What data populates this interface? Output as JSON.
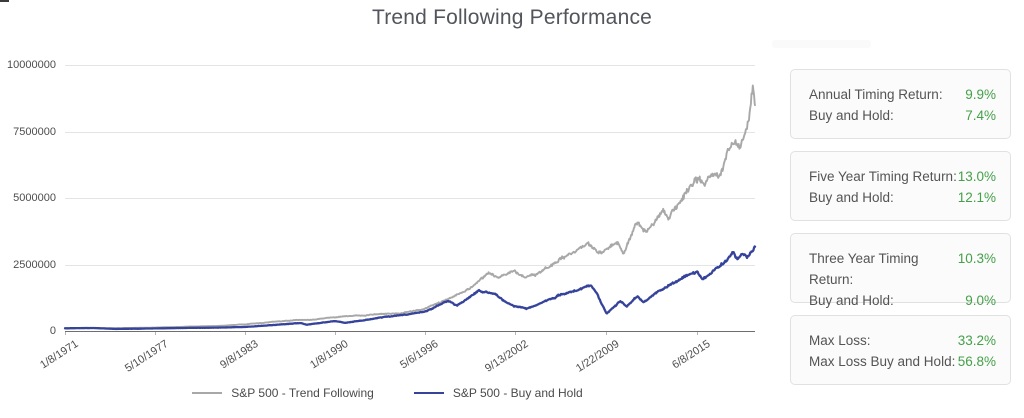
{
  "title": "Trend Following Performance",
  "chart_data": {
    "type": "line",
    "title": "Trend Following Performance",
    "xlabel": "",
    "ylabel": "",
    "grid": "horizontal",
    "legend_position": "bottom",
    "ylim": [
      0,
      10000000
    ],
    "y_ticks": [
      0,
      2500000,
      5000000,
      7500000,
      10000000
    ],
    "y_tick_labels": [
      "0",
      "2500000",
      "5000000",
      "7500000",
      "10000000"
    ],
    "x_tick_labels": [
      "1/8/1971",
      "5/10/1977",
      "9/8/1983",
      "1/8/1990",
      "5/6/1996",
      "9/13/2002",
      "1/22/2009",
      "6/8/2015"
    ],
    "x_tick_years": [
      1971.02,
      1977.36,
      1983.69,
      1990.02,
      1996.35,
      2002.7,
      2009.06,
      2015.44
    ],
    "xlim_years": [
      1971.02,
      2019.55
    ],
    "series": [
      {
        "name": "S&P 500 - Trend Following",
        "color": "#a8a8a8",
        "anchors_year_value": [
          [
            1971.02,
            100000
          ],
          [
            1973.0,
            110000
          ],
          [
            1974.5,
            105000
          ],
          [
            1977.4,
            130000
          ],
          [
            1980.0,
            170000
          ],
          [
            1982.0,
            200000
          ],
          [
            1983.7,
            250000
          ],
          [
            1986.0,
            360000
          ],
          [
            1987.7,
            430000
          ],
          [
            1988.3,
            420000
          ],
          [
            1990.0,
            520000
          ],
          [
            1991.0,
            560000
          ],
          [
            1993.1,
            640000
          ],
          [
            1994.5,
            660000
          ],
          [
            1996.3,
            830000
          ],
          [
            1998.0,
            1200000
          ],
          [
            1999.4,
            1580000
          ],
          [
            2000.8,
            2190000
          ],
          [
            2001.5,
            2070000
          ],
          [
            2002.6,
            2260000
          ],
          [
            2003.3,
            2000000
          ],
          [
            2004.3,
            2190000
          ],
          [
            2005.7,
            2640000
          ],
          [
            2007.1,
            3130000
          ],
          [
            2007.8,
            3280000
          ],
          [
            2008.5,
            2940000
          ],
          [
            2009.2,
            3090000
          ],
          [
            2009.9,
            3400000
          ],
          [
            2010.3,
            2940000
          ],
          [
            2011.3,
            4070000
          ],
          [
            2011.9,
            3700000
          ],
          [
            2012.4,
            3960000
          ],
          [
            2013.1,
            4530000
          ],
          [
            2013.5,
            4230000
          ],
          [
            2014.2,
            4900000
          ],
          [
            2014.9,
            5470000
          ],
          [
            2015.4,
            5850000
          ],
          [
            2016.0,
            5660000
          ],
          [
            2016.6,
            6110000
          ],
          [
            2017.1,
            5960000
          ],
          [
            2017.7,
            6790000
          ],
          [
            2018.2,
            7170000
          ],
          [
            2018.5,
            6870000
          ],
          [
            2019.0,
            7620000
          ],
          [
            2019.2,
            8110000
          ],
          [
            2019.4,
            9130000
          ],
          [
            2019.55,
            8490000
          ]
        ]
      },
      {
        "name": "S&P 500 - Buy and Hold",
        "color": "#35439b",
        "anchors_year_value": [
          [
            1971.02,
            100000
          ],
          [
            1973.0,
            115000
          ],
          [
            1974.6,
            78000
          ],
          [
            1977.4,
            95000
          ],
          [
            1980.0,
            120000
          ],
          [
            1982.0,
            130000
          ],
          [
            1983.7,
            150000
          ],
          [
            1987.6,
            300000
          ],
          [
            1988.0,
            235000
          ],
          [
            1990.0,
            380000
          ],
          [
            1990.7,
            305000
          ],
          [
            1993.1,
            490000
          ],
          [
            1996.3,
            720000
          ],
          [
            1998.0,
            1130000
          ],
          [
            1998.6,
            940000
          ],
          [
            2000.1,
            1510000
          ],
          [
            2001.3,
            1400000
          ],
          [
            2001.8,
            1130000
          ],
          [
            2002.6,
            940000
          ],
          [
            2003.5,
            830000
          ],
          [
            2005.7,
            1320000
          ],
          [
            2008.0,
            1740000
          ],
          [
            2008.4,
            1430000
          ],
          [
            2009.1,
            640000
          ],
          [
            2010.1,
            1130000
          ],
          [
            2010.5,
            940000
          ],
          [
            2011.3,
            1320000
          ],
          [
            2011.7,
            1090000
          ],
          [
            2013.1,
            1580000
          ],
          [
            2014.2,
            1960000
          ],
          [
            2015.4,
            2260000
          ],
          [
            2015.8,
            2000000
          ],
          [
            2016.3,
            2110000
          ],
          [
            2016.6,
            2260000
          ],
          [
            2017.3,
            2530000
          ],
          [
            2018.0,
            2910000
          ],
          [
            2018.3,
            2640000
          ],
          [
            2018.7,
            2940000
          ],
          [
            2019.0,
            2720000
          ],
          [
            2019.3,
            3020000
          ],
          [
            2019.55,
            3170000
          ]
        ]
      }
    ]
  },
  "stats_panel": {
    "cards": [
      {
        "rows": [
          {
            "label": "Annual Timing Return:",
            "value": "9.9%"
          },
          {
            "label": "Buy and Hold:",
            "value": "7.4%"
          }
        ]
      },
      {
        "rows": [
          {
            "label": "Five Year Timing Return:",
            "value": "13.0%"
          },
          {
            "label": "Buy and Hold:",
            "value": "12.1%"
          }
        ]
      },
      {
        "rows": [
          {
            "label": "Three Year Timing Return:",
            "value": "10.3%"
          },
          {
            "label": "Buy and Hold:",
            "value": "9.0%"
          }
        ]
      },
      {
        "rows": [
          {
            "label": "Max Loss:",
            "value": "33.2%"
          },
          {
            "label": "Max Loss Buy and Hold:",
            "value": "56.8%"
          }
        ]
      }
    ]
  },
  "colors": {
    "value_green": "#45a049",
    "trend_following_line": "#a8a8a8",
    "buy_and_hold_line": "#35439b",
    "gridline": "#e4e4e4",
    "axis": "#6e6e6e",
    "text": "#4d4d4d"
  }
}
